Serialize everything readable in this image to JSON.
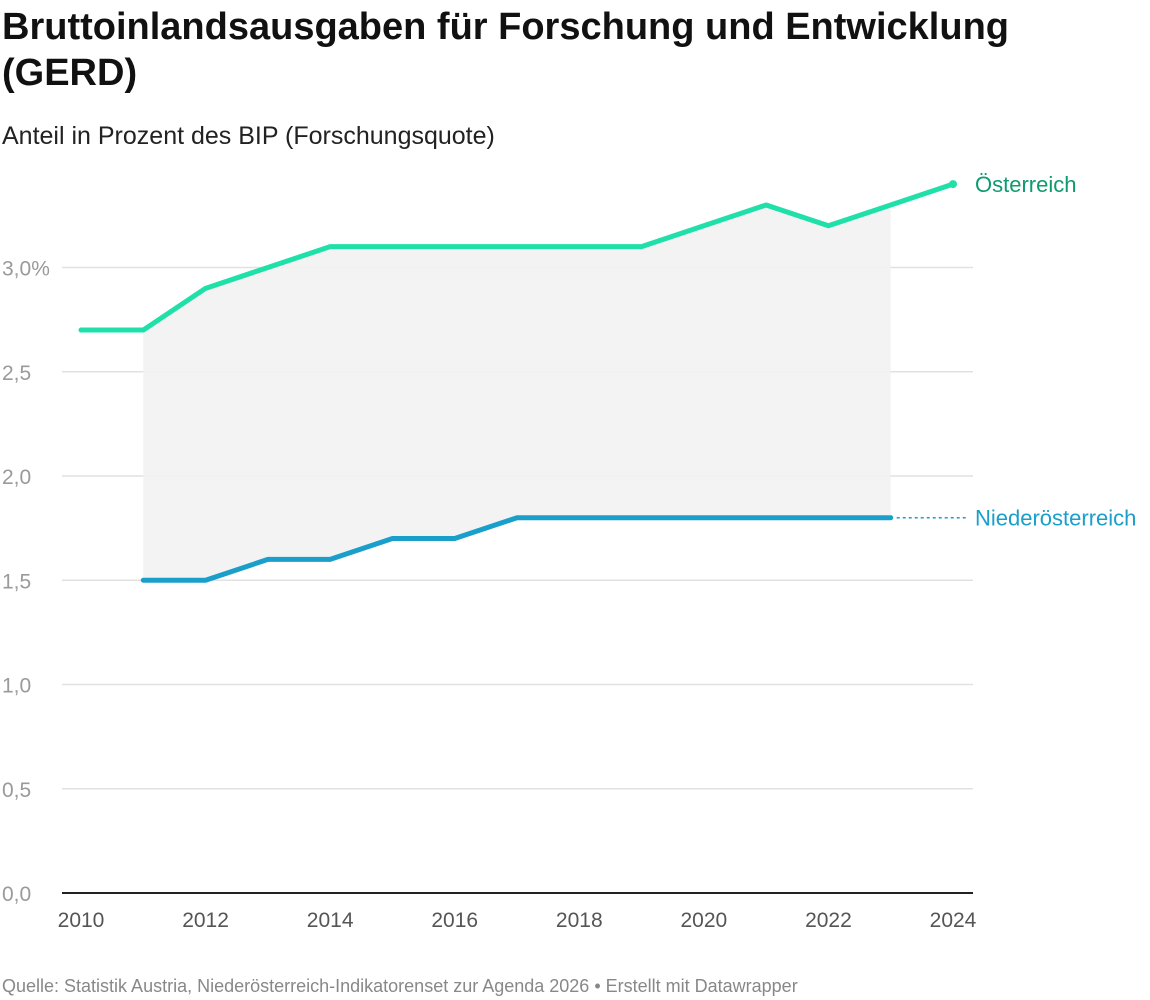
{
  "header": {
    "title": "Bruttoinlandsausgaben für Forschung und Entwicklung (GERD)",
    "subtitle": "Anteil in Prozent des BIP (Forschungsquote)"
  },
  "footer": {
    "source": "Quelle: Statistik Austria, Niederösterreich-Indikatorenset zur Agenda 2026 • Erstellt mit Datawrapper"
  },
  "chart_data": {
    "type": "line",
    "title": "Bruttoinlandsausgaben für Forschung und Entwicklung (GERD)",
    "subtitle": "Anteil in Prozent des BIP (Forschungsquote)",
    "xlabel": "",
    "ylabel": "",
    "xlim": [
      2010,
      2024
    ],
    "ylim": [
      0,
      3.4
    ],
    "x_ticks": [
      2010,
      2012,
      2014,
      2016,
      2018,
      2020,
      2022,
      2024
    ],
    "y_ticks": [
      0,
      0.5,
      1.0,
      1.5,
      2.0,
      2.5,
      3.0
    ],
    "y_tick_labels": [
      "0,0",
      "0,5",
      "1,0",
      "1,5",
      "2,0",
      "2,5",
      "3,0%"
    ],
    "grid": true,
    "legend": "direct labels at line ends",
    "range_shading": "gray area between the two series (2011–2023)",
    "series": [
      {
        "name": "Österreich",
        "color": "#1ee0a8",
        "label_color": "#0e9b6e",
        "x": [
          2010,
          2011,
          2012,
          2013,
          2014,
          2015,
          2016,
          2017,
          2018,
          2019,
          2020,
          2021,
          2022,
          2023,
          2024
        ],
        "values": [
          2.7,
          2.7,
          2.9,
          3.0,
          3.1,
          3.1,
          3.1,
          3.1,
          3.1,
          3.1,
          3.2,
          3.3,
          3.2,
          3.3,
          3.4
        ]
      },
      {
        "name": "Niederösterreich",
        "color": "#1a9fcb",
        "label_color": "#1a9fcb",
        "x": [
          2011,
          2012,
          2013,
          2014,
          2015,
          2016,
          2017,
          2018,
          2019,
          2020,
          2021,
          2022,
          2023
        ],
        "values": [
          1.5,
          1.5,
          1.6,
          1.6,
          1.7,
          1.7,
          1.8,
          1.8,
          1.8,
          1.8,
          1.8,
          1.8,
          1.8
        ]
      }
    ]
  }
}
